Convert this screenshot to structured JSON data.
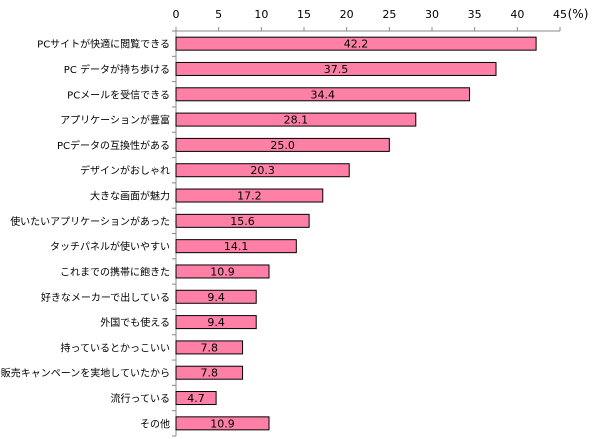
{
  "chart_data": {
    "type": "bar",
    "orientation": "horizontal",
    "unit": "(%)",
    "xlim": [
      0,
      45
    ],
    "ticks": [
      "0",
      "5",
      "10",
      "15",
      "20",
      "25",
      "30",
      "35",
      "40",
      "45"
    ],
    "bar_color": "#FF80A6",
    "bar_edge_color": "#000000",
    "categories": [
      "PCサイトが快適に閲覧できる",
      "PC データが持ち歩ける",
      "PCメールを受信できる",
      "アプリケーションが豊富",
      "PCデータの互換性がある",
      "デザインがおしゃれ",
      "大きな画面が魅力",
      "使いたいアプリケーションがあった",
      "タッチパネルが使いやすい",
      "これまでの携帯に飽きた",
      "好きなメーカーで出している",
      "外国でも使える",
      "持っているとかっこいい",
      "販売キャンペーンを実地していたから",
      "流行っている",
      "その他"
    ],
    "values": [
      42.2,
      37.5,
      34.4,
      28.1,
      25.0,
      20.3,
      17.2,
      15.6,
      14.1,
      10.9,
      9.4,
      9.4,
      7.8,
      7.8,
      4.7,
      10.9
    ],
    "value_labels": [
      "42.2",
      "37.5",
      "34.4",
      "28.1",
      "25.0",
      "20.3",
      "17.2",
      "15.6",
      "14.1",
      "10.9",
      "9.4",
      "9.4",
      "7.8",
      "7.8",
      "4.7",
      "10.9"
    ]
  }
}
